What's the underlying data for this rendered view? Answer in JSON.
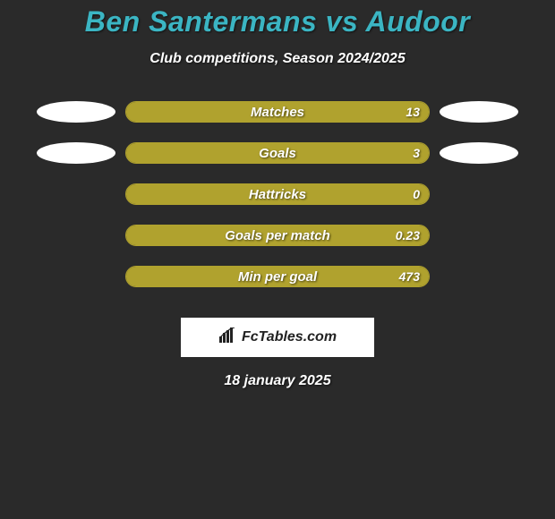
{
  "title_color": "#3bb5c3",
  "background_color": "#2a2a2a",
  "bar_fill_color": "#b0a22e",
  "bar_border_color": "#b0a22e",
  "ellipse_color": "#ffffff",
  "text_color": "#ffffff",
  "title": "Ben Santermans vs Audoor",
  "subtitle": "Club competitions, Season 2024/2025",
  "rows": [
    {
      "label": "Matches",
      "value": "13",
      "fill_pct": 100,
      "left_ellipse": true,
      "right_ellipse": true
    },
    {
      "label": "Goals",
      "value": "3",
      "fill_pct": 100,
      "left_ellipse": true,
      "right_ellipse": true
    },
    {
      "label": "Hattricks",
      "value": "0",
      "fill_pct": 100,
      "left_ellipse": false,
      "right_ellipse": false
    },
    {
      "label": "Goals per match",
      "value": "0.23",
      "fill_pct": 100,
      "left_ellipse": false,
      "right_ellipse": false
    },
    {
      "label": "Min per goal",
      "value": "473",
      "fill_pct": 100,
      "left_ellipse": false,
      "right_ellipse": false
    }
  ],
  "logo_text": "FcTables.com",
  "date": "18 january 2025"
}
